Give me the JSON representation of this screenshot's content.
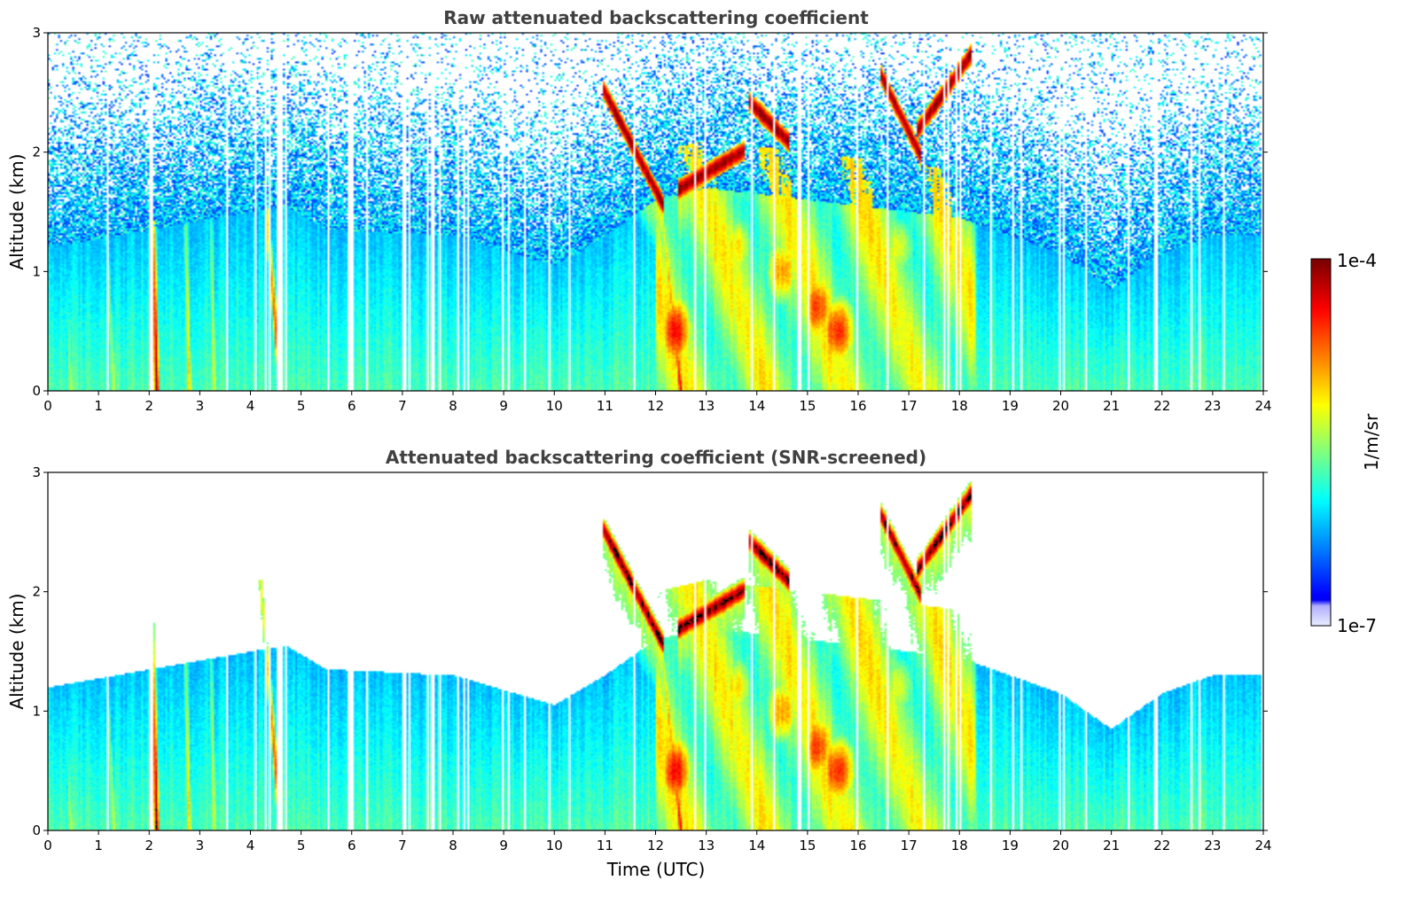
{
  "chart_data": [
    {
      "type": "heatmap",
      "title": "Raw attenuated backscattering coefficient",
      "xlabel": "",
      "ylabel": "Altitude (km)",
      "xlim": [
        0,
        24
      ],
      "ylim": [
        0,
        3
      ],
      "x_ticks": [
        "0",
        "1",
        "2",
        "3",
        "4",
        "5",
        "6",
        "7",
        "8",
        "9",
        "10",
        "11",
        "12",
        "13",
        "14",
        "15",
        "16",
        "17",
        "18",
        "19",
        "20",
        "21",
        "22",
        "23",
        "24"
      ],
      "y_ticks": [
        "0",
        "1",
        "2",
        "3"
      ],
      "screened": false
    },
    {
      "type": "heatmap",
      "title": "Attenuated backscattering coefficient (SNR-screened)",
      "xlabel": "Time (UTC)",
      "ylabel": "Altitude (km)",
      "xlim": [
        0,
        24
      ],
      "ylim": [
        0,
        3
      ],
      "x_ticks": [
        "0",
        "1",
        "2",
        "3",
        "4",
        "5",
        "6",
        "7",
        "8",
        "9",
        "10",
        "11",
        "12",
        "13",
        "14",
        "15",
        "16",
        "17",
        "18",
        "19",
        "20",
        "21",
        "22",
        "23",
        "24"
      ],
      "y_ticks": [
        "0",
        "1",
        "2",
        "3"
      ],
      "screened": true
    }
  ],
  "colorbar": {
    "label": "1/m/sr",
    "max_label": "1e-4",
    "min_label": "1e-7",
    "scale": "log",
    "colormap": "jet"
  },
  "features": {
    "boundary_layer_top_km": [
      [
        0,
        1.2
      ],
      [
        4.7,
        1.55
      ],
      [
        5.5,
        1.35
      ],
      [
        8,
        1.3
      ],
      [
        10,
        1.05
      ],
      [
        11,
        1.3
      ],
      [
        12,
        1.6
      ],
      [
        13,
        1.7
      ],
      [
        16,
        1.55
      ],
      [
        18,
        1.45
      ],
      [
        19,
        1.3
      ],
      [
        20,
        1.15
      ],
      [
        21,
        0.85
      ],
      [
        22,
        1.15
      ],
      [
        23,
        1.3
      ],
      [
        24,
        1.3
      ]
    ],
    "cloud_layers": [
      {
        "t0": 11.0,
        "t1": 12.1,
        "z0": 2.5,
        "z1": 1.6
      },
      {
        "t0": 12.5,
        "t1": 13.7,
        "z0": 1.7,
        "z1": 2.0
      },
      {
        "t0": 13.9,
        "t1": 14.6,
        "z0": 2.4,
        "z1": 2.1
      },
      {
        "t0": 16.5,
        "t1": 17.2,
        "z0": 2.6,
        "z1": 2.0
      },
      {
        "t0": 17.2,
        "t1": 18.2,
        "z0": 2.2,
        "z1": 2.8
      }
    ],
    "fall_streaks": [
      {
        "t_top": 0.35,
        "t_bottom": 0.45,
        "z_top": 1.1,
        "value": 0.55
      },
      {
        "t_top": 1.15,
        "t_bottom": 1.3,
        "z_top": 1.4,
        "value": 0.6
      },
      {
        "t_top": 2.05,
        "t_bottom": 2.15,
        "z_top": 1.9,
        "value": 0.95
      },
      {
        "t_top": 2.7,
        "t_bottom": 2.8,
        "z_top": 1.7,
        "value": 0.65
      },
      {
        "t_top": 3.2,
        "t_bottom": 3.3,
        "z_top": 1.7,
        "value": 0.6
      },
      {
        "t_top": 4.2,
        "t_bottom": 4.6,
        "z_top": 2.1,
        "value": 0.9
      },
      {
        "t_top": 12.1,
        "t_bottom": 12.5,
        "z_top": 1.6,
        "value": 0.85
      },
      {
        "t_top": 22.7,
        "t_bottom": 22.8,
        "z_top": 1.6,
        "value": 0.5
      }
    ],
    "high_backscatter_blobs": [
      {
        "t": 12.4,
        "z": 0.5,
        "value": 0.85
      },
      {
        "t": 15.2,
        "z": 0.7,
        "value": 0.8
      },
      {
        "t": 15.6,
        "z": 0.5,
        "value": 0.85
      },
      {
        "t": 14.5,
        "z": 1.0,
        "value": 0.7
      },
      {
        "t": 13.6,
        "z": 1.2,
        "value": 0.65
      },
      {
        "t": 16.8,
        "z": 1.2,
        "value": 0.6
      }
    ],
    "data_gaps_utc": [
      2.0,
      2.03,
      2.06,
      4.55,
      4.58,
      4.62,
      5.95,
      5.98,
      6.01
    ]
  }
}
